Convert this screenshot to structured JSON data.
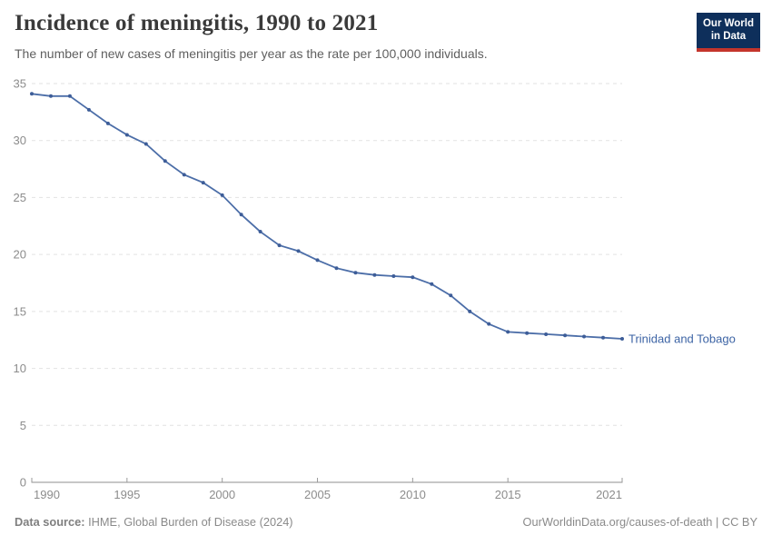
{
  "header": {
    "title": "Incidence of meningitis, 1990 to 2021",
    "subtitle": "The number of new cases of meningitis per year as the rate per 100,000 individuals.",
    "logo": {
      "line1": "Our World",
      "line2": "in Data"
    }
  },
  "footer": {
    "datasource_label": "Data source:",
    "datasource_value": "IHME, Global Burden of Disease (2024)",
    "link": "OurWorldinData.org/causes-of-death",
    "separator": "|",
    "license": "CC BY"
  },
  "colors": {
    "line": "#4c6ea8",
    "point": "#3d5d98",
    "entity_label": "#3d64a5",
    "logo_navy": "#0e2f5b",
    "logo_red": "#c4352c",
    "grid": "#e2e2e2",
    "axis_text": "#8c8c8c"
  },
  "chart_data": {
    "type": "line",
    "title": "Incidence of meningitis, 1990 to 2021",
    "subtitle": "The number of new cases of meningitis per year as the rate per 100,000 individuals.",
    "xlabel": "",
    "ylabel": "",
    "xlim": [
      1990,
      2021
    ],
    "ylim": [
      0,
      35
    ],
    "xticks": [
      1990,
      1995,
      2000,
      2005,
      2010,
      2015,
      2021
    ],
    "yticks": [
      0,
      5,
      10,
      15,
      20,
      25,
      30,
      35
    ],
    "grid": "horizontal-dashed",
    "legend_position": "end-of-line",
    "x": [
      1990,
      1991,
      1992,
      1993,
      1994,
      1995,
      1996,
      1997,
      1998,
      1999,
      2000,
      2001,
      2002,
      2003,
      2004,
      2005,
      2006,
      2007,
      2008,
      2009,
      2010,
      2011,
      2012,
      2013,
      2014,
      2015,
      2016,
      2017,
      2018,
      2019,
      2020,
      2021
    ],
    "series": [
      {
        "name": "Trinidad and Tobago",
        "color": "#4c6ea8",
        "values": [
          34.1,
          33.9,
          33.9,
          32.7,
          31.5,
          30.5,
          29.7,
          28.2,
          27.0,
          26.3,
          25.2,
          23.5,
          22.0,
          20.8,
          20.3,
          19.5,
          18.8,
          18.4,
          18.2,
          18.1,
          18.0,
          17.4,
          16.4,
          15.0,
          13.9,
          13.2,
          13.1,
          13.0,
          12.9,
          12.8,
          12.7,
          12.6
        ]
      }
    ]
  }
}
